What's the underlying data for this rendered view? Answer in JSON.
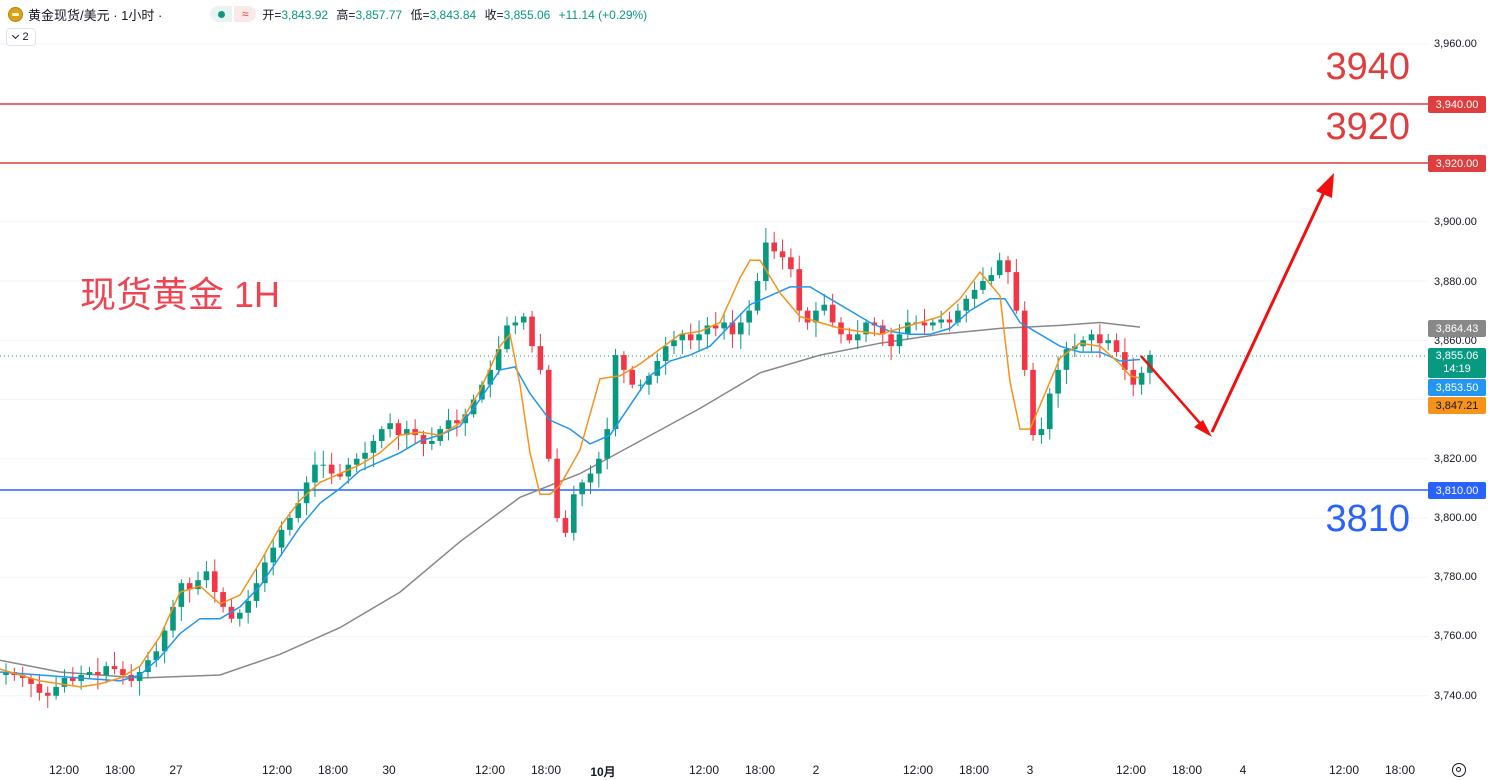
{
  "header": {
    "symbol": "黄金现货/美元 · 1小时 ·",
    "open_label": "开=",
    "open": "3,843.92",
    "high_label": "高=",
    "high": "3,857.77",
    "low_label": "低=",
    "low": "3,843.84",
    "close_label": "收=",
    "close": "3,855.06",
    "change": "+11.14 (+0.29%)",
    "badge_wave_icon": "≈",
    "indicator_count": "2"
  },
  "annotations": {
    "title": "现货黄金 1H",
    "level_3940": "3940",
    "level_3920": "3920",
    "level_3810": "3810"
  },
  "price_tags": {
    "t3940": "3,940.00",
    "t3920": "3,920.00",
    "t3810": "3,810.00",
    "ma_slow": "3,864.43",
    "last": "3,855.06",
    "countdown": "14:19",
    "ma_mid": "3,853.50",
    "ma_fast": "3,847.21"
  },
  "colors": {
    "up": "#089981",
    "down": "#f23645",
    "red_line": "#e03e3e",
    "blue_line": "#2962ff",
    "ma_fast": "#f7931a",
    "ma_mid": "#2196f3",
    "ma_slow": "#888888"
  },
  "chart_data": {
    "type": "candlestick",
    "y_ticks": [
      "3,960.00",
      "3,900.00",
      "3,880.00",
      "3,860.00",
      "3,820.00",
      "3,800.00",
      "3,780.00",
      "3,760.00",
      "3,740.00"
    ],
    "x_ticks": [
      "12:00",
      "18:00",
      "27",
      "12:00",
      "18:00",
      "30",
      "12:00",
      "18:00",
      "10月",
      "12:00",
      "18:00",
      "2",
      "12:00",
      "18:00",
      "3",
      "12:00",
      "18:00",
      "4",
      "12:00",
      "18:00"
    ],
    "ylim": [
      3730,
      3975
    ],
    "horizontal_levels": [
      {
        "value": 3940,
        "color": "red"
      },
      {
        "value": 3920,
        "color": "red"
      },
      {
        "value": 3810,
        "color": "blue"
      }
    ],
    "close_path": [
      3748,
      3747,
      3746,
      3744,
      3741,
      3740,
      3743,
      3746,
      3745,
      3747,
      3748,
      3747,
      3750,
      3749,
      3747,
      3745,
      3748,
      3752,
      3755,
      3762,
      3770,
      3778,
      3776,
      3779,
      3782,
      3775,
      3770,
      3766,
      3768,
      3772,
      3778,
      3785,
      3790,
      3796,
      3800,
      3805,
      3812,
      3818,
      3818,
      3815,
      3814,
      3818,
      3820,
      3822,
      3826,
      3830,
      3832,
      3828,
      3830,
      3828,
      3825,
      3826,
      3830,
      3833,
      3832,
      3835,
      3840,
      3845,
      3850,
      3857,
      3865,
      3866,
      3868,
      3858,
      3850,
      3820,
      3800,
      3795,
      3808,
      3812,
      3815,
      3820,
      3830,
      3855,
      3850,
      3845,
      3845,
      3848,
      3853,
      3858,
      3860,
      3862,
      3860,
      3862,
      3865,
      3864,
      3866,
      3862,
      3866,
      3870,
      3880,
      3893,
      3890,
      3888,
      3884,
      3870,
      3866,
      3870,
      3872,
      3866,
      3862,
      3860,
      3862,
      3866,
      3865,
      3862,
      3858,
      3862,
      3866,
      3866,
      3865,
      3866,
      3867,
      3866,
      3870,
      3874,
      3877,
      3880,
      3882,
      3887,
      3883,
      3870,
      3850,
      3828,
      3830,
      3842,
      3850,
      3857,
      3858,
      3860,
      3862,
      3859,
      3860,
      3856,
      3850,
      3845,
      3849,
      3855.06
    ],
    "ma_fast_path": [
      [
        0,
        3749
      ],
      [
        40,
        3745
      ],
      [
        80,
        3743
      ],
      [
        100,
        3744
      ],
      [
        120,
        3746
      ],
      [
        140,
        3750
      ],
      [
        160,
        3760
      ],
      [
        180,
        3775
      ],
      [
        200,
        3777
      ],
      [
        220,
        3771
      ],
      [
        240,
        3774
      ],
      [
        260,
        3785
      ],
      [
        280,
        3797
      ],
      [
        300,
        3806
      ],
      [
        320,
        3812
      ],
      [
        340,
        3815
      ],
      [
        360,
        3818
      ],
      [
        380,
        3822
      ],
      [
        400,
        3828
      ],
      [
        420,
        3829
      ],
      [
        440,
        3828
      ],
      [
        460,
        3832
      ],
      [
        480,
        3843
      ],
      [
        500,
        3858
      ],
      [
        510,
        3862
      ],
      [
        520,
        3845
      ],
      [
        530,
        3822
      ],
      [
        540,
        3808
      ],
      [
        550,
        3808
      ],
      [
        560,
        3811
      ],
      [
        580,
        3823
      ],
      [
        600,
        3847
      ],
      [
        620,
        3848
      ],
      [
        640,
        3852
      ],
      [
        660,
        3857
      ],
      [
        680,
        3862
      ],
      [
        700,
        3863
      ],
      [
        720,
        3866
      ],
      [
        740,
        3881
      ],
      [
        750,
        3887
      ],
      [
        760,
        3887
      ],
      [
        780,
        3876
      ],
      [
        800,
        3868
      ],
      [
        820,
        3866
      ],
      [
        840,
        3864
      ],
      [
        860,
        3863
      ],
      [
        880,
        3862
      ],
      [
        900,
        3864
      ],
      [
        920,
        3866
      ],
      [
        940,
        3868
      ],
      [
        960,
        3874
      ],
      [
        980,
        3883
      ],
      [
        1000,
        3875
      ],
      [
        1010,
        3846
      ],
      [
        1020,
        3830
      ],
      [
        1030,
        3830
      ],
      [
        1040,
        3838
      ],
      [
        1060,
        3854
      ],
      [
        1080,
        3859
      ],
      [
        1100,
        3858
      ],
      [
        1120,
        3852
      ],
      [
        1130,
        3848
      ],
      [
        1140,
        3847.21
      ]
    ],
    "ma_mid_path": [
      [
        0,
        3748
      ],
      [
        40,
        3747
      ],
      [
        80,
        3746
      ],
      [
        120,
        3745
      ],
      [
        140,
        3747
      ],
      [
        160,
        3753
      ],
      [
        180,
        3761
      ],
      [
        200,
        3766
      ],
      [
        220,
        3766
      ],
      [
        240,
        3770
      ],
      [
        260,
        3777
      ],
      [
        280,
        3787
      ],
      [
        300,
        3797
      ],
      [
        320,
        3805
      ],
      [
        340,
        3810
      ],
      [
        360,
        3816
      ],
      [
        380,
        3819
      ],
      [
        400,
        3822
      ],
      [
        420,
        3826
      ],
      [
        440,
        3828
      ],
      [
        460,
        3831
      ],
      [
        480,
        3840
      ],
      [
        500,
        3850
      ],
      [
        515,
        3851
      ],
      [
        530,
        3842
      ],
      [
        550,
        3833
      ],
      [
        570,
        3830
      ],
      [
        590,
        3825
      ],
      [
        610,
        3828
      ],
      [
        630,
        3838
      ],
      [
        650,
        3848
      ],
      [
        670,
        3853
      ],
      [
        690,
        3855
      ],
      [
        710,
        3858
      ],
      [
        730,
        3865
      ],
      [
        750,
        3872
      ],
      [
        770,
        3875
      ],
      [
        790,
        3878
      ],
      [
        810,
        3878
      ],
      [
        830,
        3874
      ],
      [
        850,
        3870
      ],
      [
        870,
        3866
      ],
      [
        890,
        3863
      ],
      [
        910,
        3862
      ],
      [
        930,
        3862
      ],
      [
        950,
        3864
      ],
      [
        970,
        3870
      ],
      [
        990,
        3874
      ],
      [
        1005,
        3874
      ],
      [
        1020,
        3866
      ],
      [
        1040,
        3862
      ],
      [
        1060,
        3858
      ],
      [
        1080,
        3856
      ],
      [
        1100,
        3856
      ],
      [
        1120,
        3853
      ],
      [
        1140,
        3853.5
      ]
    ],
    "ma_slow_path": [
      [
        0,
        3752
      ],
      [
        60,
        3748
      ],
      [
        140,
        3746
      ],
      [
        220,
        3747
      ],
      [
        280,
        3754
      ],
      [
        340,
        3763
      ],
      [
        400,
        3775
      ],
      [
        460,
        3792
      ],
      [
        520,
        3807
      ],
      [
        580,
        3815
      ],
      [
        640,
        3826
      ],
      [
        700,
        3837
      ],
      [
        760,
        3849
      ],
      [
        820,
        3855
      ],
      [
        880,
        3859
      ],
      [
        940,
        3862
      ],
      [
        1000,
        3864
      ],
      [
        1060,
        3865
      ],
      [
        1100,
        3866
      ],
      [
        1140,
        3864.43
      ]
    ],
    "projection": [
      3855,
      3830,
      3920
    ]
  }
}
